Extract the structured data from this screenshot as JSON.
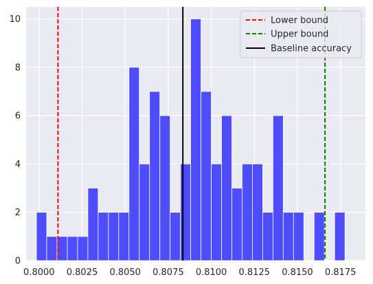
{
  "chart_data": {
    "type": "bar",
    "title": "",
    "xlabel": "",
    "ylabel": "",
    "grid": true,
    "legend_position": "top-right",
    "xlim": [
      0.79925,
      0.81895
    ],
    "ylim": [
      0,
      10.5
    ],
    "x_ticks": [
      "0.8000",
      "0.8025",
      "0.8050",
      "0.8075",
      "0.8100",
      "0.8125",
      "0.8150",
      "0.8175"
    ],
    "x_tick_values": [
      0.8,
      0.8025,
      0.805,
      0.8075,
      0.81,
      0.8125,
      0.815,
      0.8175
    ],
    "y_ticks": [
      "0",
      "2",
      "4",
      "6",
      "8",
      "10"
    ],
    "y_tick_values": [
      0,
      2,
      4,
      6,
      8,
      10
    ],
    "histogram": {
      "bin_start": 0.79985,
      "bin_width": 0.000597,
      "counts": [
        2,
        1,
        1,
        1,
        1,
        3,
        2,
        2,
        2,
        8,
        4,
        7,
        6,
        2,
        4,
        10,
        7,
        4,
        6,
        3,
        4,
        4,
        2,
        6,
        2,
        2,
        0,
        2,
        0,
        2
      ],
      "color": "#4444ff"
    },
    "lines": [
      {
        "name": "Lower bound",
        "x": 0.8011,
        "color": "#ff0000",
        "style": "dashed"
      },
      {
        "name": "Upper bound",
        "x": 0.8166,
        "color": "#008000",
        "style": "dashed"
      },
      {
        "name": "Baseline accuracy",
        "x": 0.80835,
        "color": "#000000",
        "style": "solid"
      }
    ]
  }
}
